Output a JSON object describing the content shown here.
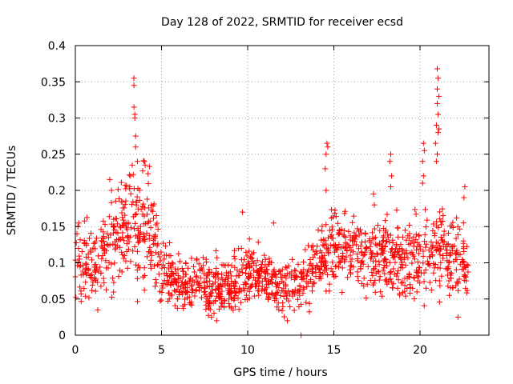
{
  "chart_data": {
    "type": "scatter",
    "title": "Day 128 of 2022, SRMTID for receiver ecsd",
    "xlabel": "GPS time / hours",
    "ylabel": "SRMTID / TECUs",
    "xlim": [
      0,
      24
    ],
    "ylim": [
      0,
      0.4
    ],
    "xticks": [
      0,
      5,
      10,
      15,
      20
    ],
    "yticks": [
      0,
      0.05,
      0.1,
      0.15,
      0.2,
      0.25,
      0.3,
      0.35,
      0.4
    ],
    "xtick_labels": [
      "0",
      "5",
      "10",
      "15",
      "20"
    ],
    "ytick_labels": [
      "0",
      "0.05",
      "0.1",
      "0.15",
      "0.2",
      "0.25",
      "0.3",
      "0.35",
      "0.4"
    ],
    "grid": true,
    "marker": "+",
    "marker_color": "#ff0000",
    "series": [
      {
        "name": "SRMTID",
        "profile": [
          [
            0.0,
            0.105,
            0.03
          ],
          [
            1.0,
            0.095,
            0.03
          ],
          [
            2.0,
            0.12,
            0.035
          ],
          [
            3.0,
            0.15,
            0.045
          ],
          [
            3.5,
            0.165,
            0.05
          ],
          [
            4.0,
            0.15,
            0.045
          ],
          [
            4.5,
            0.14,
            0.04
          ],
          [
            5.0,
            0.09,
            0.025
          ],
          [
            6.0,
            0.07,
            0.02
          ],
          [
            7.0,
            0.07,
            0.02
          ],
          [
            8.0,
            0.065,
            0.02
          ],
          [
            9.0,
            0.07,
            0.02
          ],
          [
            10.0,
            0.085,
            0.025
          ],
          [
            11.0,
            0.08,
            0.02
          ],
          [
            12.0,
            0.065,
            0.02
          ],
          [
            13.0,
            0.07,
            0.02
          ],
          [
            14.0,
            0.095,
            0.025
          ],
          [
            15.0,
            0.12,
            0.03
          ],
          [
            16.0,
            0.12,
            0.03
          ],
          [
            17.0,
            0.11,
            0.03
          ],
          [
            18.0,
            0.11,
            0.03
          ],
          [
            19.0,
            0.1,
            0.03
          ],
          [
            20.0,
            0.11,
            0.035
          ],
          [
            21.0,
            0.12,
            0.04
          ],
          [
            22.0,
            0.11,
            0.035
          ],
          [
            22.8,
            0.095,
            0.025
          ]
        ],
        "spikes": [
          [
            3.4,
            0.355
          ],
          [
            3.4,
            0.345
          ],
          [
            3.4,
            0.315
          ],
          [
            3.45,
            0.305
          ],
          [
            3.45,
            0.3
          ],
          [
            3.5,
            0.275
          ],
          [
            3.5,
            0.26
          ],
          [
            3.3,
            0.235
          ],
          [
            3.2,
            0.22
          ],
          [
            3.6,
            0.24
          ],
          [
            4.0,
            0.24
          ],
          [
            4.05,
            0.235
          ],
          [
            2.0,
            0.215
          ],
          [
            2.1,
            0.2
          ],
          [
            14.6,
            0.265
          ],
          [
            14.65,
            0.26
          ],
          [
            14.55,
            0.25
          ],
          [
            14.5,
            0.23
          ],
          [
            14.55,
            0.2
          ],
          [
            18.3,
            0.25
          ],
          [
            18.25,
            0.24
          ],
          [
            18.35,
            0.22
          ],
          [
            18.3,
            0.205
          ],
          [
            20.2,
            0.265
          ],
          [
            20.25,
            0.255
          ],
          [
            20.15,
            0.24
          ],
          [
            20.2,
            0.22
          ],
          [
            20.15,
            0.21
          ],
          [
            21.0,
            0.368
          ],
          [
            21.05,
            0.355
          ],
          [
            21.0,
            0.34
          ],
          [
            21.1,
            0.33
          ],
          [
            21.0,
            0.32
          ],
          [
            21.05,
            0.305
          ],
          [
            20.95,
            0.29
          ],
          [
            21.1,
            0.285
          ],
          [
            21.05,
            0.28
          ],
          [
            20.9,
            0.265
          ],
          [
            21.0,
            0.25
          ],
          [
            20.95,
            0.24
          ],
          [
            22.6,
            0.205
          ],
          [
            22.55,
            0.19
          ],
          [
            17.3,
            0.195
          ],
          [
            17.35,
            0.18
          ],
          [
            9.7,
            0.17
          ],
          [
            11.5,
            0.155
          ],
          [
            13.1,
            0.0
          ],
          [
            12.3,
            0.02
          ],
          [
            8.2,
            0.02
          ],
          [
            7.9,
            0.025
          ],
          [
            22.2,
            0.025
          ],
          [
            1.3,
            0.035
          ],
          [
            9.6,
            0.045
          ],
          [
            0.2,
            0.155
          ],
          [
            0.15,
            0.15
          ]
        ]
      }
    ]
  }
}
